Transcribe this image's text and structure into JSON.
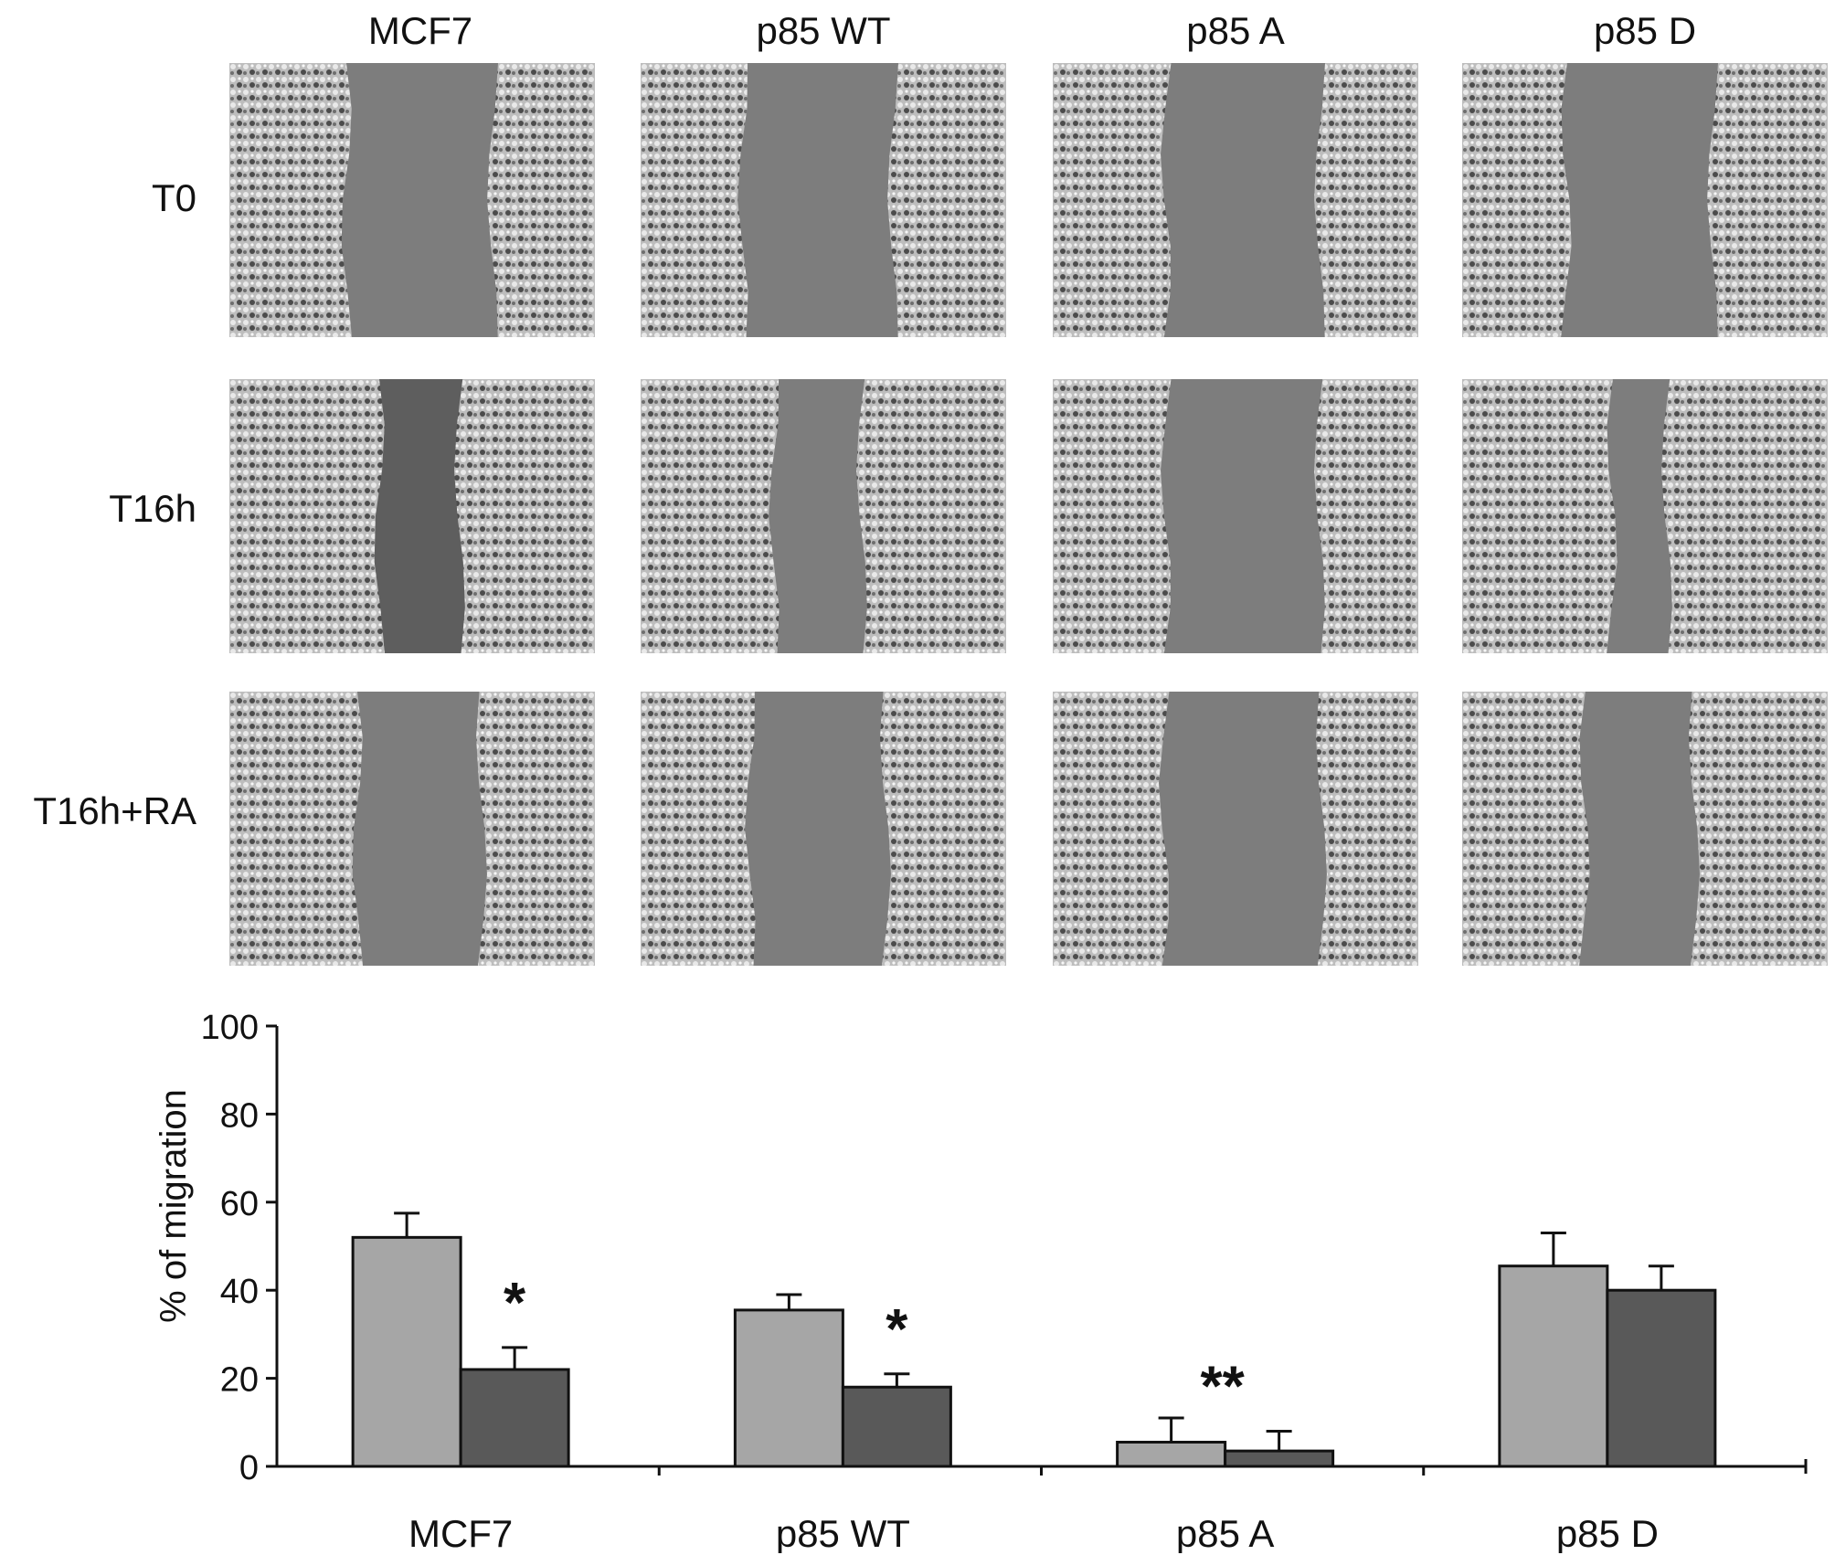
{
  "micrographs": {
    "columns": [
      "MCF7",
      "p85 WT",
      "p85 A",
      "p85 D"
    ],
    "rows": [
      "T0",
      "T16h",
      "T16h+RA"
    ],
    "gap_fraction": [
      [
        0.4,
        0.41,
        0.42,
        0.4
      ],
      [
        0.22,
        0.24,
        0.42,
        0.15
      ],
      [
        0.34,
        0.37,
        0.43,
        0.3
      ]
    ]
  },
  "chart_data": {
    "type": "bar",
    "categories": [
      "MCF7",
      "p85 WT",
      "p85 A",
      "p85 D"
    ],
    "ylabel": "% of migration",
    "ylim": [
      0,
      100
    ],
    "yticks": [
      "0",
      "20",
      "40",
      "60",
      "80",
      "100"
    ],
    "series": [
      {
        "color": "#a6a6a6",
        "values": [
          52,
          35.5,
          5.5,
          45.5
        ],
        "errors": [
          5.5,
          3.5,
          5.5,
          7.5
        ]
      },
      {
        "color": "#595959",
        "values": [
          22,
          18,
          3.5,
          40
        ],
        "errors": [
          5,
          3,
          4.5,
          5.5
        ]
      }
    ],
    "annotations": [
      "*",
      "*",
      "**",
      ""
    ],
    "grid": false,
    "legend": "none"
  }
}
